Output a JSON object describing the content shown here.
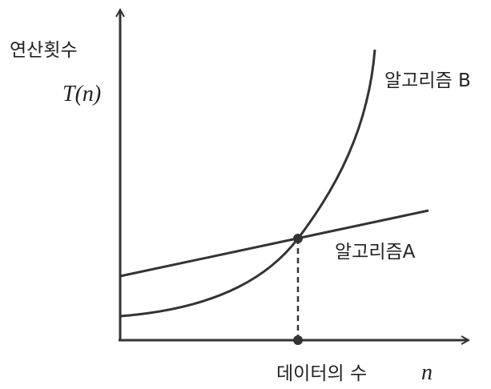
{
  "y_axis": {
    "label": "연산횟수",
    "symbol": "T(n)"
  },
  "x_axis": {
    "label": "데이터의 수",
    "symbol": "n"
  },
  "curves": [
    {
      "label": "알고리즘 B"
    },
    {
      "label": "알고리즘A"
    }
  ]
}
